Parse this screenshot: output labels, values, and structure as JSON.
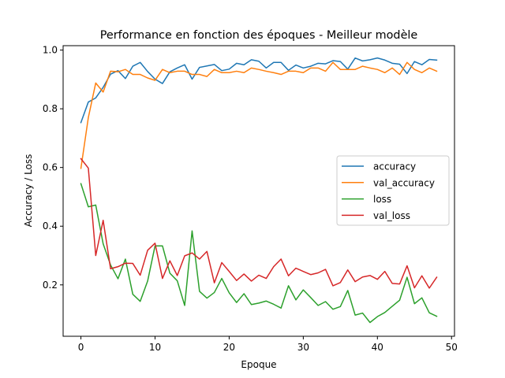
{
  "chart_data": {
    "type": "line",
    "title": "Performance en fonction des époques - Meilleur modèle",
    "xlabel": "Epoque",
    "ylabel": "Accuracy / Loss",
    "xlim": [
      -2.4,
      50.4
    ],
    "ylim": [
      0.025,
      1.015
    ],
    "xticks": [
      0,
      10,
      20,
      30,
      40,
      50
    ],
    "yticks": [
      0.2,
      0.4,
      0.6,
      0.8,
      1.0
    ],
    "xtick_labels": [
      "0",
      "10",
      "20",
      "30",
      "40",
      "50"
    ],
    "ytick_labels": [
      "0.2",
      "0.4",
      "0.6",
      "0.8",
      "1.0"
    ],
    "grid": false,
    "legend_position": "center-right",
    "x": [
      0,
      1,
      2,
      3,
      4,
      5,
      6,
      7,
      8,
      9,
      10,
      11,
      12,
      13,
      14,
      15,
      16,
      17,
      18,
      19,
      20,
      21,
      22,
      23,
      24,
      25,
      26,
      27,
      28,
      29,
      30,
      31,
      32,
      33,
      34,
      35,
      36,
      37,
      38,
      39,
      40,
      41,
      42,
      43,
      44,
      45,
      46,
      47,
      48
    ],
    "series": [
      {
        "name": "accuracy",
        "color": "#1f77b4",
        "values": [
          0.753,
          0.823,
          0.837,
          0.873,
          0.918,
          0.93,
          0.903,
          0.945,
          0.958,
          0.927,
          0.901,
          0.886,
          0.926,
          0.939,
          0.95,
          0.901,
          0.941,
          0.946,
          0.951,
          0.93,
          0.935,
          0.955,
          0.95,
          0.967,
          0.962,
          0.939,
          0.958,
          0.958,
          0.931,
          0.949,
          0.939,
          0.945,
          0.955,
          0.953,
          0.964,
          0.961,
          0.935,
          0.973,
          0.963,
          0.967,
          0.973,
          0.966,
          0.955,
          0.952,
          0.92,
          0.961,
          0.95,
          0.968,
          0.966
        ]
      },
      {
        "name": "val_accuracy",
        "color": "#ff7f0e",
        "values": [
          0.597,
          0.77,
          0.888,
          0.857,
          0.928,
          0.926,
          0.934,
          0.917,
          0.917,
          0.905,
          0.897,
          0.934,
          0.923,
          0.928,
          0.928,
          0.917,
          0.917,
          0.91,
          0.934,
          0.923,
          0.923,
          0.928,
          0.923,
          0.939,
          0.934,
          0.928,
          0.923,
          0.917,
          0.928,
          0.928,
          0.923,
          0.939,
          0.939,
          0.928,
          0.958,
          0.934,
          0.934,
          0.934,
          0.945,
          0.939,
          0.934,
          0.923,
          0.939,
          0.917,
          0.958,
          0.934,
          0.923,
          0.939,
          0.928
        ]
      },
      {
        "name": "loss",
        "color": "#2ca02c",
        "values": [
          0.545,
          0.466,
          0.472,
          0.34,
          0.268,
          0.221,
          0.288,
          0.168,
          0.144,
          0.213,
          0.333,
          0.333,
          0.24,
          0.214,
          0.13,
          0.384,
          0.178,
          0.155,
          0.174,
          0.222,
          0.173,
          0.14,
          0.17,
          0.133,
          0.138,
          0.145,
          0.134,
          0.121,
          0.197,
          0.149,
          0.183,
          0.157,
          0.13,
          0.143,
          0.117,
          0.126,
          0.181,
          0.097,
          0.104,
          0.072,
          0.092,
          0.106,
          0.127,
          0.148,
          0.226,
          0.136,
          0.156,
          0.105,
          0.093
        ]
      },
      {
        "name": "val_loss",
        "color": "#d62728",
        "values": [
          0.63,
          0.598,
          0.3,
          0.42,
          0.255,
          0.262,
          0.274,
          0.273,
          0.233,
          0.318,
          0.342,
          0.222,
          0.282,
          0.232,
          0.299,
          0.309,
          0.288,
          0.314,
          0.207,
          0.276,
          0.246,
          0.215,
          0.237,
          0.213,
          0.233,
          0.222,
          0.262,
          0.288,
          0.231,
          0.257,
          0.246,
          0.235,
          0.241,
          0.253,
          0.197,
          0.208,
          0.251,
          0.211,
          0.227,
          0.232,
          0.219,
          0.246,
          0.205,
          0.203,
          0.265,
          0.19,
          0.231,
          0.189,
          0.226
        ]
      }
    ]
  }
}
